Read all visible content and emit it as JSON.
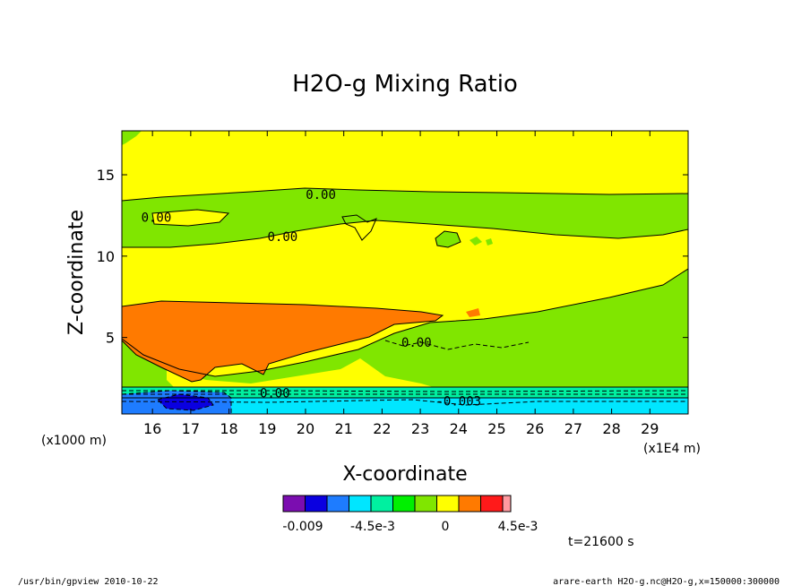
{
  "chart_data": {
    "type": "heatmap",
    "title": "H2O-g Mixing Ratio",
    "xlabel": "X-coordinate",
    "ylabel": "Z-coordinate",
    "x_unit": "(x1E4 m)",
    "y_unit": "(x1000 m)",
    "xlim": [
      15.2,
      30.0
    ],
    "ylim": [
      0.3,
      17.7
    ],
    "x_ticks": [
      "16",
      "17",
      "18",
      "19",
      "20",
      "21",
      "22",
      "23",
      "24",
      "25",
      "26",
      "27",
      "28",
      "29"
    ],
    "x_tick_values": [
      16,
      17,
      18,
      19,
      20,
      21,
      22,
      23,
      24,
      25,
      26,
      27,
      28,
      29
    ],
    "y_ticks": [
      "5",
      "10",
      "15"
    ],
    "y_tick_values": [
      5,
      10,
      15
    ],
    "contour_labels": [
      {
        "text": "0.00",
        "x": 20.4,
        "y": 13.8
      },
      {
        "text": "0.00",
        "x": 16.1,
        "y": 12.4
      },
      {
        "text": "0.00",
        "x": 19.4,
        "y": 11.2
      },
      {
        "text": "0.00",
        "x": 22.9,
        "y": 4.7
      },
      {
        "text": "0.00",
        "x": 19.2,
        "y": 1.6
      },
      {
        "text": "-0.003",
        "x": 24.0,
        "y": 1.1
      }
    ],
    "colorbar": {
      "colors": [
        "#7b0db0",
        "#0a00e0",
        "#1e7cff",
        "#00e6ff",
        "#00f0a0",
        "#00f000",
        "#80e600",
        "#ffff00",
        "#ff7a00",
        "#ff1a1a",
        "#ff9aa0"
      ],
      "tick_labels": [
        "-0.009",
        "-4.5e-3",
        "0",
        "4.5e-3"
      ]
    },
    "time_label": "t=21600  s"
  },
  "footer": {
    "left": "/usr/bin/gpview  2010-10-22",
    "right": "arare-earth_H2O-g.nc@H2O-g,x=150000:300000"
  }
}
